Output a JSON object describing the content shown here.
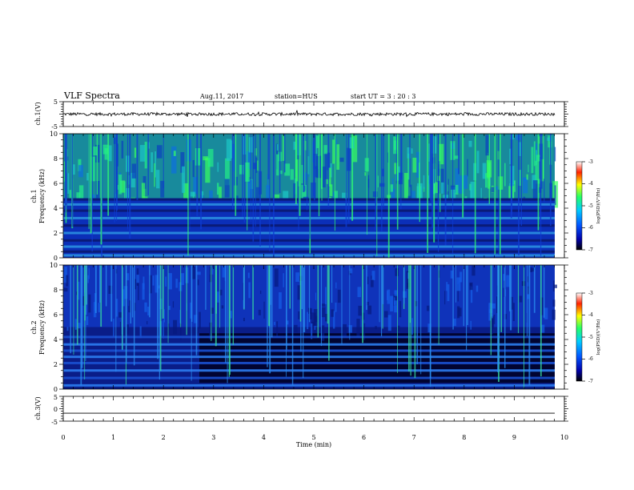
{
  "header": {
    "title": "VLF Spectra",
    "date": "Aug.11, 2017",
    "station": "station=HUS",
    "start": "start UT =  3 : 20 : 3"
  },
  "colors": {
    "background": "#ffffff",
    "spectrogram_low": "#000033",
    "spectrogram_mid": "#0044dd",
    "spectrogram_high": "#22ff88",
    "colormap": [
      "#000000",
      "#0000aa",
      "#0055ff",
      "#00ccff",
      "#22ff66",
      "#ffff00",
      "#ff2200",
      "#ffffff"
    ]
  },
  "chart_data": [
    {
      "type": "line",
      "panel": "ch1-waveform",
      "ylabel": "ch.1(V)",
      "ytick_labels": [
        "5",
        "-5"
      ],
      "ylim": [
        -5,
        5
      ],
      "xlim": [
        0,
        10
      ],
      "series": [
        {
          "mean": 0,
          "amplitude_approx": 0.6
        }
      ]
    },
    {
      "type": "heatmap",
      "panel": "ch1-spectrogram",
      "ylabel_top": "ch.1",
      "ylabel": "Frequency (kHz)",
      "ytick_labels": [
        "0",
        "2",
        "4",
        "6",
        "8",
        "10"
      ],
      "ylim": [
        0,
        10
      ],
      "xlim": [
        0,
        9.85
      ],
      "colorbar": {
        "label": "log(PSD)(V²/Hz)",
        "tick_labels": [
          "-3",
          "-4",
          "-5",
          "-6",
          "-7"
        ],
        "range": [
          -7,
          -3
        ]
      },
      "bands_khz": [
        0.2,
        0.5,
        0.9,
        1.4,
        2.0,
        2.6,
        3.2,
        3.8,
        4.3,
        4.7
      ],
      "level_above_5khz": "-5.2 to -4.8",
      "level_below_5khz": "-6.4"
    },
    {
      "type": "heatmap",
      "panel": "ch2-spectrogram",
      "ylabel_top": "ch.2",
      "ylabel": "Frequency (kHz)",
      "ytick_labels": [
        "0",
        "2",
        "4",
        "6",
        "8",
        "10"
      ],
      "ylim": [
        0,
        10
      ],
      "xlim": [
        0,
        9.85
      ],
      "colorbar": {
        "label": "log(PSD)(V²/Hz)",
        "tick_labels": [
          "-3",
          "-4",
          "-5",
          "-6",
          "-7"
        ],
        "range": [
          -7,
          -3
        ]
      },
      "bands_khz": [
        0.3,
        0.9,
        1.5,
        2.1,
        2.6,
        3.1,
        3.6,
        4.2
      ],
      "level_overall": "-6.3"
    },
    {
      "type": "line",
      "panel": "ch3-waveform",
      "ylabel": "ch.3(V)",
      "ytick_labels": [
        "5",
        "0",
        "-5"
      ],
      "ylim": [
        -5,
        5
      ],
      "xlim": [
        0,
        10
      ],
      "series": [
        {
          "mean": -1.8,
          "amplitude_approx": 0
        }
      ]
    }
  ],
  "xaxis": {
    "label": "Time (min)",
    "tick_labels": [
      "0",
      "1",
      "2",
      "3",
      "4",
      "5",
      "6",
      "7",
      "8",
      "9",
      "10"
    ],
    "range": [
      0,
      10
    ]
  }
}
